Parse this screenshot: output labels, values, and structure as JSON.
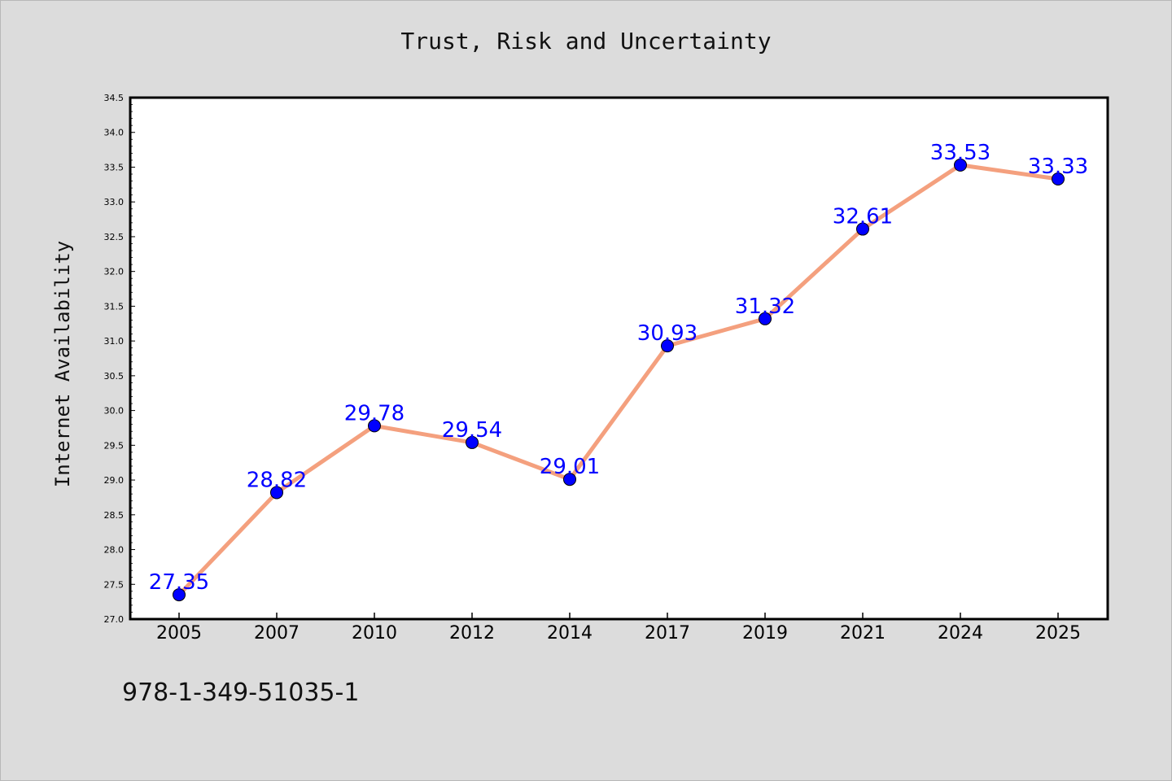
{
  "chart_data": {
    "type": "line",
    "title": "Trust, Risk and Uncertainty",
    "xlabel": "",
    "ylabel": "Internet Availability",
    "categories": [
      "2005",
      "2007",
      "2010",
      "2012",
      "2014",
      "2017",
      "2019",
      "2021",
      "2024",
      "2025"
    ],
    "values": [
      27.35,
      28.82,
      29.78,
      29.54,
      29.01,
      30.93,
      31.32,
      32.61,
      33.53,
      33.33
    ],
    "data_labels": [
      "27.35",
      "28.82",
      "29.78",
      "29.54",
      "29.01",
      "30.93",
      "31.32",
      "32.61",
      "33.53",
      "33.33"
    ],
    "ylim": [
      27.0,
      34.5
    ],
    "yticks": [
      "27.0",
      "27.5",
      "28.0",
      "28.5",
      "29.0",
      "29.5",
      "30.0",
      "30.5",
      "31.0",
      "31.5",
      "32.0",
      "32.5",
      "33.0",
      "33.5",
      "34.0",
      "34.5"
    ],
    "grid": false,
    "legend": "none",
    "colors": {
      "line": "#f4a07e",
      "marker": "#0000ff",
      "label": "#0000ff",
      "background": "#dcdcdc",
      "plot_bg": "#ffffff"
    }
  },
  "footer_text": "978-1-349-51035-1"
}
